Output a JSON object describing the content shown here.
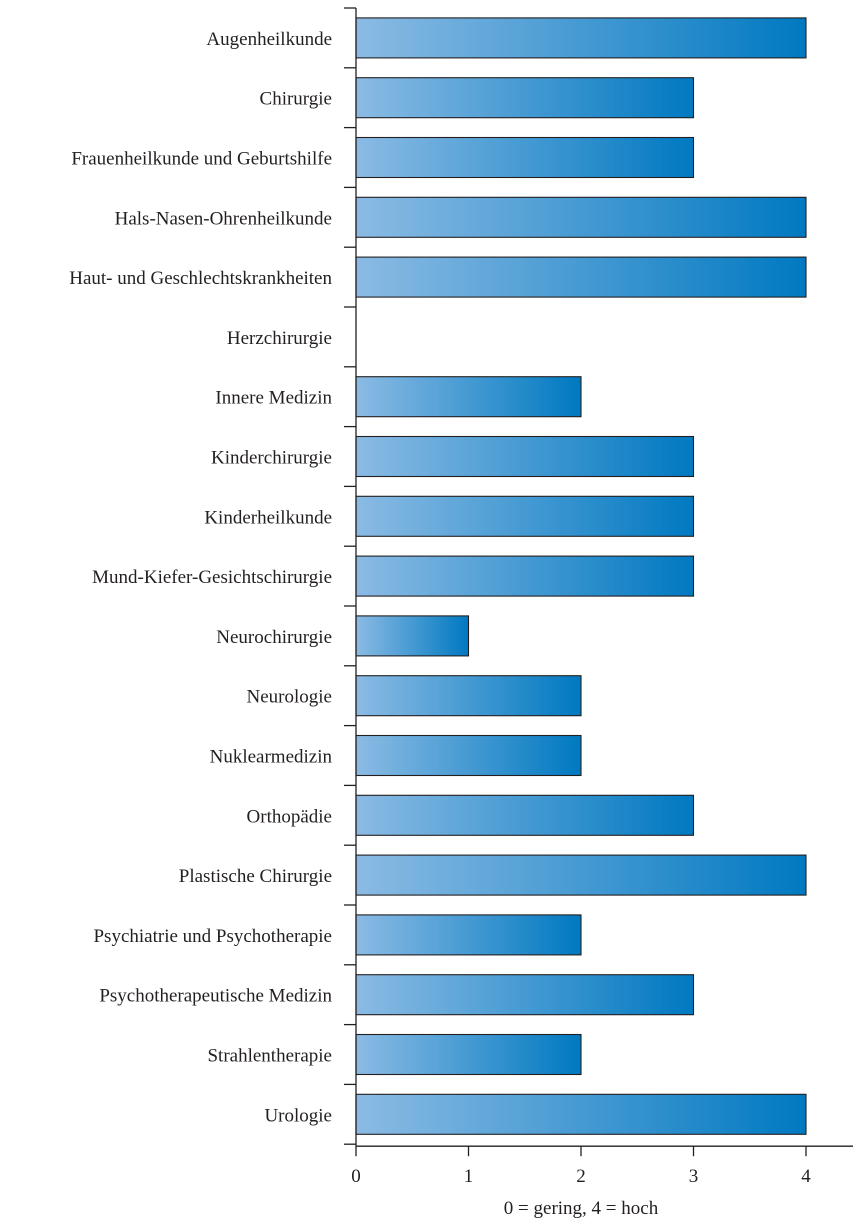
{
  "chart_data": {
    "type": "bar",
    "orientation": "horizontal",
    "categories": [
      "Augenheilkunde",
      "Chirurgie",
      "Frauenheilkunde und Geburtshilfe",
      "Hals-Nasen-Ohrenheilkunde",
      "Haut- und Geschlechtskrankheiten",
      "Herzchirurgie",
      "Innere Medizin",
      "Kinderchirurgie",
      "Kinderheilkunde",
      "Mund-Kiefer-Gesichtschirurgie",
      "Neurochirurgie",
      "Neurologie",
      "Nuklearmedizin",
      "Orthopädie",
      "Plastische Chirurgie",
      "Psychiatrie und Psychotherapie",
      "Psychotherapeutische Medizin",
      "Strahlentherapie",
      "Urologie"
    ],
    "values": [
      4,
      3,
      3,
      4,
      4,
      0,
      2,
      3,
      3,
      3,
      1,
      2,
      2,
      3,
      4,
      2,
      3,
      2,
      4
    ],
    "xlabel": "0 = gering, 4 = hoch",
    "ylabel": "",
    "title": "",
    "xlim": [
      0,
      4.4
    ],
    "xticks": [
      "0",
      "1",
      "2",
      "3",
      "4"
    ],
    "grid": false,
    "bar_color_light": "#8bbbe4",
    "bar_color_dark": "#0079c1"
  }
}
